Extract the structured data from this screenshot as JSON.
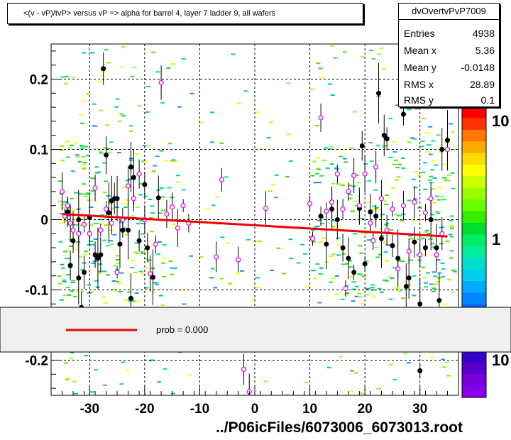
{
  "window": {
    "title": "<(v - vP)/tvP> versus   vP => alpha for barrel 4, layer 7 ladder 9, all wafers",
    "footer": "../P06icFiles/6073006_6073013.root"
  },
  "stats": {
    "name": "dvOvertvPvP7009",
    "rows": [
      {
        "key": "Entries",
        "value": "4938"
      },
      {
        "key": "Mean x",
        "value": "5.36"
      },
      {
        "key": "Mean y",
        "value": "-0.0148"
      },
      {
        "key": "RMS x",
        "value": "28.89"
      },
      {
        "key": "RMS y",
        "value": "0.1"
      }
    ]
  },
  "legend": {
    "entry": "prob = 0.000"
  },
  "colors": {
    "fit": "#ee0000",
    "profile_black": "#000000",
    "profile_magenta": "#e010e0",
    "frame": "#000000"
  },
  "chart_data": {
    "type": "scatter",
    "xlim": [
      -37,
      37
    ],
    "ylim": [
      -0.25,
      0.25
    ],
    "x_ticks": [
      -30,
      -20,
      -10,
      0,
      10,
      20,
      30
    ],
    "y_ticks": [
      -0.2,
      -0.1,
      0,
      0.1,
      0.2
    ],
    "x_tick_labels": [
      "-30",
      "-20",
      "-10",
      "0",
      "10",
      "20",
      "30"
    ],
    "y_tick_labels": [
      "-0.2",
      "-0.1",
      "0",
      "0.1",
      "0.2"
    ],
    "grid": true,
    "z_scale": "log",
    "z_labels": [
      "10",
      "1",
      "10"
    ],
    "fit": {
      "x": [
        -35,
        35
      ],
      "y": [
        0.008,
        -0.024
      ]
    },
    "black_points": [
      [
        -34,
        0.011
      ],
      [
        -33,
        -0.03
      ],
      [
        -32,
        0.0
      ],
      [
        -31,
        -0.075
      ],
      [
        -30,
        0.003
      ],
      [
        -29,
        -0.05
      ],
      [
        -28.5,
        -0.055
      ],
      [
        -28,
        -0.05
      ],
      [
        -27.5,
        0.215
      ],
      [
        -27,
        0.092
      ],
      [
        -26.5,
        0.01
      ],
      [
        -26,
        0.027
      ],
      [
        -25.5,
        0.03
      ],
      [
        -25,
        0.03
      ],
      [
        -24.5,
        -0.035
      ],
      [
        -24,
        -0.015
      ],
      [
        -23,
        -0.015
      ],
      [
        -22.5,
        0.075
      ],
      [
        -22,
        0.06
      ],
      [
        -21,
        -0.03
      ],
      [
        -20,
        0.05
      ],
      [
        -19.5,
        -0.04
      ],
      [
        -18.5,
        -0.082
      ],
      [
        -17.5,
        0.031
      ],
      [
        -32,
        -0.083
      ],
      [
        -31.5,
        -0.125
      ],
      [
        -33.5,
        -0.065
      ],
      [
        -22.5,
        -0.112
      ],
      [
        12,
        0.005
      ],
      [
        13,
        -0.035
      ],
      [
        14,
        0.015
      ],
      [
        15,
        0.0
      ],
      [
        16,
        -0.04
      ],
      [
        17,
        -0.055
      ],
      [
        18,
        -0.075
      ],
      [
        19,
        0.016
      ],
      [
        19.5,
        0.105
      ],
      [
        20,
        -0.063
      ],
      [
        21,
        0.011
      ],
      [
        22,
        0.005
      ],
      [
        22.5,
        0.18
      ],
      [
        23,
        -0.027
      ],
      [
        23.5,
        0.12
      ],
      [
        24,
        0.115
      ],
      [
        25,
        -0.037
      ],
      [
        26,
        -0.055
      ],
      [
        27,
        0.15
      ],
      [
        27.5,
        -0.095
      ],
      [
        28,
        -0.083
      ],
      [
        29,
        -0.032
      ],
      [
        30,
        -0.12
      ],
      [
        30,
        -0.215
      ],
      [
        31,
        -0.04
      ],
      [
        32,
        0.0
      ],
      [
        33,
        -0.04
      ],
      [
        33.5,
        -0.115
      ],
      [
        34,
        0.1
      ],
      [
        35,
        0.113
      ]
    ],
    "magenta_points": [
      [
        -35,
        0.04
      ],
      [
        -34.5,
        0.005
      ],
      [
        -34,
        0.02
      ],
      [
        -33.5,
        -0.005
      ],
      [
        -33,
        -0.015
      ],
      [
        -32,
        -0.02
      ],
      [
        -31,
        -0.007
      ],
      [
        -30,
        -0.02
      ],
      [
        -29,
        0.045
      ],
      [
        -28,
        -0.015
      ],
      [
        -27,
        0.015
      ],
      [
        -26,
        -0.005
      ],
      [
        -25,
        -0.075
      ],
      [
        -24,
        0.0
      ],
      [
        -23,
        0.048
      ],
      [
        -22,
        0.03
      ],
      [
        -21,
        0.065
      ],
      [
        -20,
        0.0
      ],
      [
        -19,
        -0.077
      ],
      [
        -18,
        -0.035
      ],
      [
        -17,
        0.195
      ],
      [
        -16,
        0.008
      ],
      [
        -15,
        0.018
      ],
      [
        -14,
        -0.012
      ],
      [
        -13,
        0.02
      ],
      [
        -12,
        -0.005
      ],
      [
        -6,
        0.057
      ],
      [
        -7,
        -0.053
      ],
      [
        -3,
        -0.057
      ],
      [
        -2,
        -0.213
      ],
      [
        -1,
        -0.245
      ],
      [
        2,
        0.016
      ],
      [
        10,
        0.023
      ],
      [
        10.5,
        -0.027
      ],
      [
        12,
        0.145
      ],
      [
        13,
        0.012
      ],
      [
        14,
        0.025
      ],
      [
        15,
        0.065
      ],
      [
        16,
        0.015
      ],
      [
        16.5,
        -0.098
      ],
      [
        17,
        0.04
      ],
      [
        18,
        0.063
      ],
      [
        19,
        0.02
      ],
      [
        20,
        0.065
      ],
      [
        21,
        -0.005
      ],
      [
        21.5,
        -0.03
      ],
      [
        22,
        0.075
      ],
      [
        23,
        0.03
      ],
      [
        24,
        -0.015
      ],
      [
        25,
        0.015
      ],
      [
        26,
        -0.07
      ],
      [
        27,
        0.02
      ],
      [
        28,
        -0.045
      ],
      [
        29,
        0.025
      ],
      [
        30,
        -0.05
      ],
      [
        31,
        0.01
      ],
      [
        32,
        0.03
      ],
      [
        33,
        -0.05
      ],
      [
        34,
        -0.02
      ],
      [
        35,
        0.1
      ]
    ]
  }
}
